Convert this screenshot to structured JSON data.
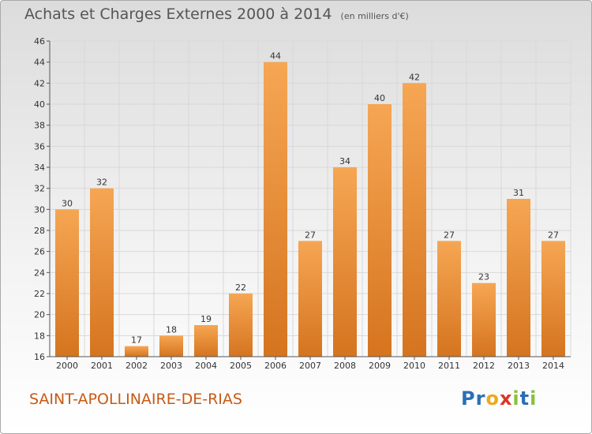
{
  "header": {
    "title": "Achats et Charges Externes 2000 à 2014",
    "unit": "(en milliers d'€)"
  },
  "place_name": "SAINT-APOLLINAIRE-DE-RIAS",
  "logo": {
    "text": "Proxiti",
    "letters": [
      {
        "ch": "P",
        "color": "#2a6fb5"
      },
      {
        "ch": "r",
        "color": "#2a6fb5"
      },
      {
        "ch": "o",
        "color": "#f0a820"
      },
      {
        "ch": "x",
        "color": "#d9352b"
      },
      {
        "ch": "i",
        "color": "#8bbf3a"
      },
      {
        "ch": "t",
        "color": "#2a6fb5"
      },
      {
        "ch": "i",
        "color": "#8bbf3a"
      }
    ]
  },
  "colors": {
    "bar_light": "#f6a653",
    "bar_dark": "#d5741f",
    "grid": "#d8d8d8",
    "axis": "#555555"
  },
  "chart_data": {
    "type": "bar",
    "title": "Achats et Charges Externes 2000 à 2014",
    "subtitle": "(en milliers d'€)",
    "categories": [
      "2000",
      "2001",
      "2002",
      "2003",
      "2004",
      "2005",
      "2006",
      "2007",
      "2008",
      "2009",
      "2010",
      "2011",
      "2012",
      "2013",
      "2014"
    ],
    "values": [
      30,
      32,
      17,
      18,
      19,
      22,
      44,
      27,
      34,
      40,
      42,
      27,
      23,
      31,
      27
    ],
    "ylim": [
      16,
      46
    ],
    "yticks": [
      16,
      18,
      20,
      22,
      24,
      26,
      28,
      30,
      32,
      34,
      36,
      38,
      40,
      42,
      44,
      46
    ],
    "grid": true,
    "data_labels": true
  }
}
